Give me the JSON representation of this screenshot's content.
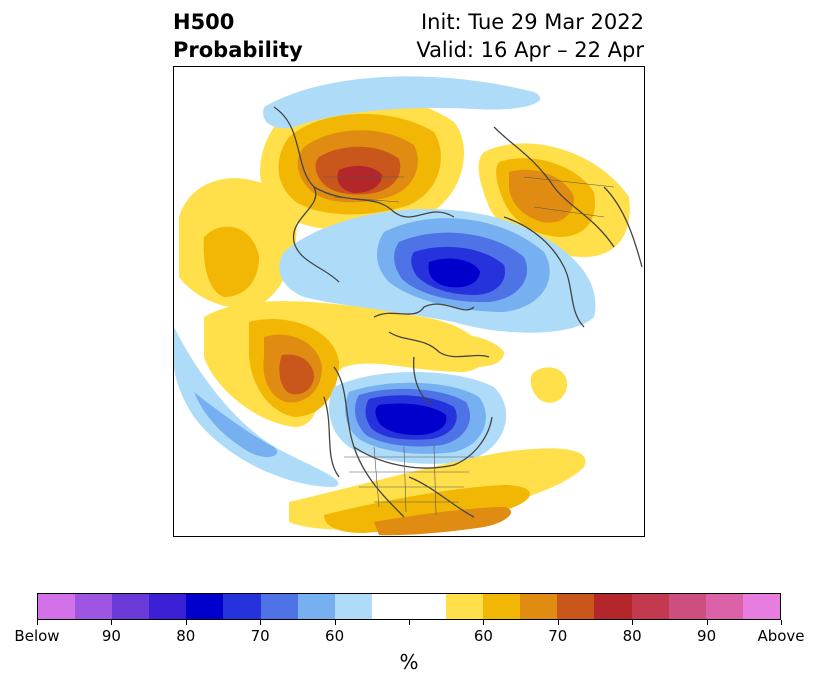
{
  "header": {
    "field": "H500",
    "type": "Probability",
    "init": "Init: Tue 29 Mar 2022",
    "valid": "Valid: 16 Apr – 22 Apr"
  },
  "colors": {
    "below_95": "#d371e8",
    "below_90": "#9e56e2",
    "below_85": "#6a3ad9",
    "below_80": "#3a1fd4",
    "below_75": "#0000cc",
    "below_70": "#2633dc",
    "below_65": "#4e73e6",
    "below_60": "#77b0f0",
    "below_55": "#aedcf8",
    "neutral": "#ffffff",
    "above_55": "#ffe04a",
    "above_60": "#f2b705",
    "above_65": "#e08c12",
    "above_70": "#c9561a",
    "above_75": "#b3272a",
    "above_80": "#c23950",
    "above_85": "#cc4f7f",
    "above_90": "#db62a8",
    "above_95": "#e87de0",
    "coastline": "#444444"
  },
  "colorbar": {
    "segments": [
      "#d371e8",
      "#9e56e2",
      "#6a3ad9",
      "#3a1fd4",
      "#0000cc",
      "#2633dc",
      "#4e73e6",
      "#77b0f0",
      "#aedcf8",
      "#ffffff",
      "#ffffff",
      "#ffe04a",
      "#f2b705",
      "#e08c12",
      "#c9561a",
      "#b3272a",
      "#c23950",
      "#cc4f7f",
      "#db62a8",
      "#e87de0"
    ],
    "ticks": [
      "Below",
      "90",
      "80",
      "70",
      "60",
      "",
      "60",
      "70",
      "80",
      "90",
      "Above"
    ],
    "unit": "%"
  }
}
